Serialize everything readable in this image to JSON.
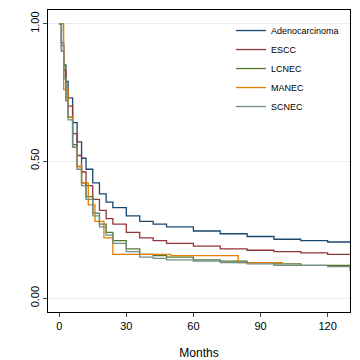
{
  "chart_data": {
    "type": "line",
    "line_style": "step",
    "x_label": "Months",
    "xlim": [
      -5,
      130
    ],
    "xticks": [
      0,
      30,
      60,
      90,
      120
    ],
    "ylim": [
      -0.05,
      1.05
    ],
    "yticks": [
      {
        "value": 0,
        "label": "0.00"
      },
      {
        "value": 0.5,
        "label": "0.50"
      },
      {
        "value": 1,
        "label": "1.00"
      }
    ],
    "grid": true,
    "legend": "top right",
    "series": [
      {
        "name": "Adenocarcinoma",
        "color": "#1a476f",
        "x": [
          0,
          1,
          2,
          3,
          4,
          6,
          8,
          10,
          12,
          15,
          18,
          21,
          24,
          30,
          36,
          42,
          48,
          60,
          72,
          84,
          96,
          108,
          120,
          130
        ],
        "values": [
          1,
          0.93,
          0.85,
          0.79,
          0.73,
          0.64,
          0.57,
          0.51,
          0.47,
          0.42,
          0.38,
          0.35,
          0.33,
          0.3,
          0.28,
          0.27,
          0.26,
          0.245,
          0.235,
          0.225,
          0.215,
          0.21,
          0.205,
          0.2
        ]
      },
      {
        "name": "ESCC",
        "color": "#90353b",
        "x": [
          0,
          1,
          2,
          3,
          4,
          6,
          8,
          10,
          12,
          15,
          18,
          21,
          24,
          30,
          36,
          42,
          48,
          60,
          72,
          84,
          96,
          108,
          120,
          130
        ],
        "values": [
          1,
          0.92,
          0.83,
          0.76,
          0.7,
          0.6,
          0.52,
          0.46,
          0.41,
          0.36,
          0.32,
          0.29,
          0.27,
          0.24,
          0.22,
          0.21,
          0.2,
          0.19,
          0.18,
          0.175,
          0.17,
          0.165,
          0.16,
          0.16
        ]
      },
      {
        "name": "LCNEC",
        "color": "#55752f",
        "x": [
          0,
          1,
          2,
          3,
          4,
          6,
          8,
          10,
          12,
          15,
          18,
          21,
          24,
          30,
          36,
          42,
          48,
          60,
          72,
          84,
          96,
          108,
          120,
          130
        ],
        "values": [
          1,
          0.9,
          0.8,
          0.72,
          0.66,
          0.56,
          0.48,
          0.42,
          0.37,
          0.31,
          0.27,
          0.24,
          0.21,
          0.18,
          0.16,
          0.155,
          0.15,
          0.14,
          0.135,
          0.13,
          0.125,
          0.12,
          0.12,
          0.12
        ]
      },
      {
        "name": "MANEC",
        "color": "#e37e00",
        "x": [
          0,
          2,
          4,
          6,
          8,
          10,
          13,
          16,
          20,
          24,
          50,
          80,
          100
        ],
        "values": [
          1,
          0.76,
          0.66,
          0.55,
          0.48,
          0.42,
          0.34,
          0.28,
          0.22,
          0.16,
          0.155,
          0.13,
          0.13
        ]
      },
      {
        "name": "SCNEC",
        "color": "#6e8e84",
        "x": [
          0,
          1,
          2,
          3,
          4,
          6,
          8,
          10,
          12,
          15,
          18,
          21,
          24,
          30,
          36,
          42,
          48,
          60,
          72,
          84,
          96,
          108,
          120,
          130
        ],
        "values": [
          1,
          0.9,
          0.8,
          0.72,
          0.65,
          0.55,
          0.47,
          0.41,
          0.36,
          0.3,
          0.26,
          0.23,
          0.2,
          0.17,
          0.15,
          0.145,
          0.14,
          0.135,
          0.13,
          0.125,
          0.12,
          0.12,
          0.115,
          0.1
        ]
      }
    ]
  }
}
